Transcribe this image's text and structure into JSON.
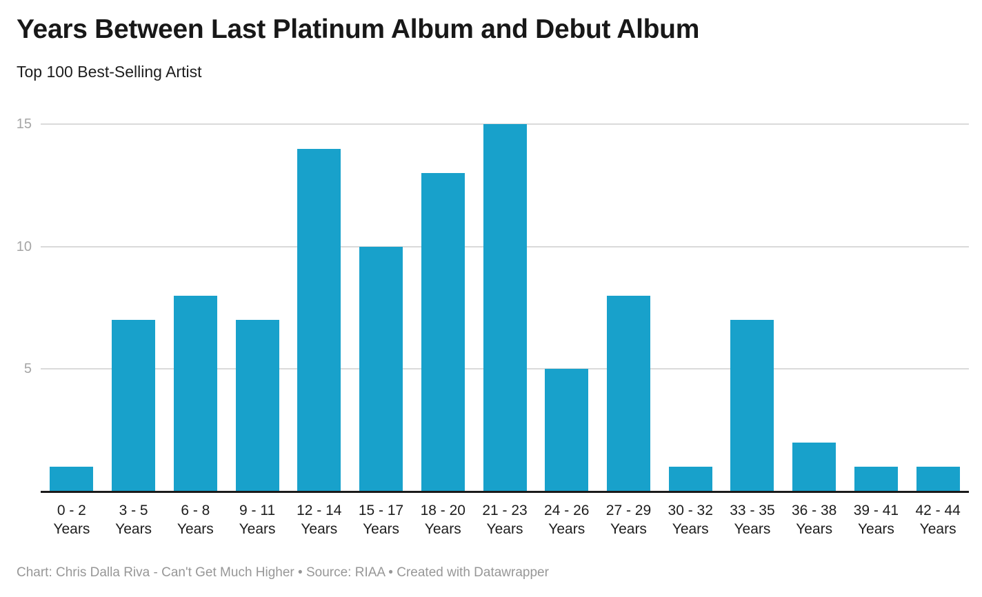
{
  "header": {
    "title": "Years Between Last Platinum Album and Debut Album",
    "subtitle": "Top 100 Best-Selling Artist"
  },
  "chart_data": {
    "type": "bar",
    "title": "Years Between Last Platinum Album and Debut Album",
    "subtitle": "Top 100 Best-Selling Artist",
    "categories": [
      "0 - 2 Years",
      "3 - 5 Years",
      "6 - 8 Years",
      "9 - 11 Years",
      "12 - 14 Years",
      "15 - 17 Years",
      "18 - 20 Years",
      "21 - 23 Years",
      "24 - 26 Years",
      "27 - 29 Years",
      "30 - 32 Years",
      "33 - 35 Years",
      "36 - 38 Years",
      "39 - 41 Years",
      "42 - 44 Years"
    ],
    "values": [
      1,
      7,
      8,
      7,
      14,
      10,
      13,
      15,
      5,
      8,
      1,
      7,
      2,
      1,
      1
    ],
    "xlabel": "",
    "ylabel": "",
    "ylim": [
      0,
      15
    ],
    "yticks": [
      5,
      10,
      15
    ],
    "grid": "horizontal",
    "legend": "none"
  },
  "footer": {
    "text": "Chart: Chris Dalla Riva - Can't Get Much Higher • Source: RIAA • Created with Datawrapper"
  },
  "colors": {
    "bar": "#18a1cb",
    "baseline": "#1a1a1a",
    "gridline": "#dadada",
    "y_tick_label": "#a5a5a5",
    "x_tick_label": "#1d1d1d",
    "title": "#181818",
    "subtitle": "#1d1d1d",
    "footer": "#979797",
    "background": "#ffffff"
  }
}
